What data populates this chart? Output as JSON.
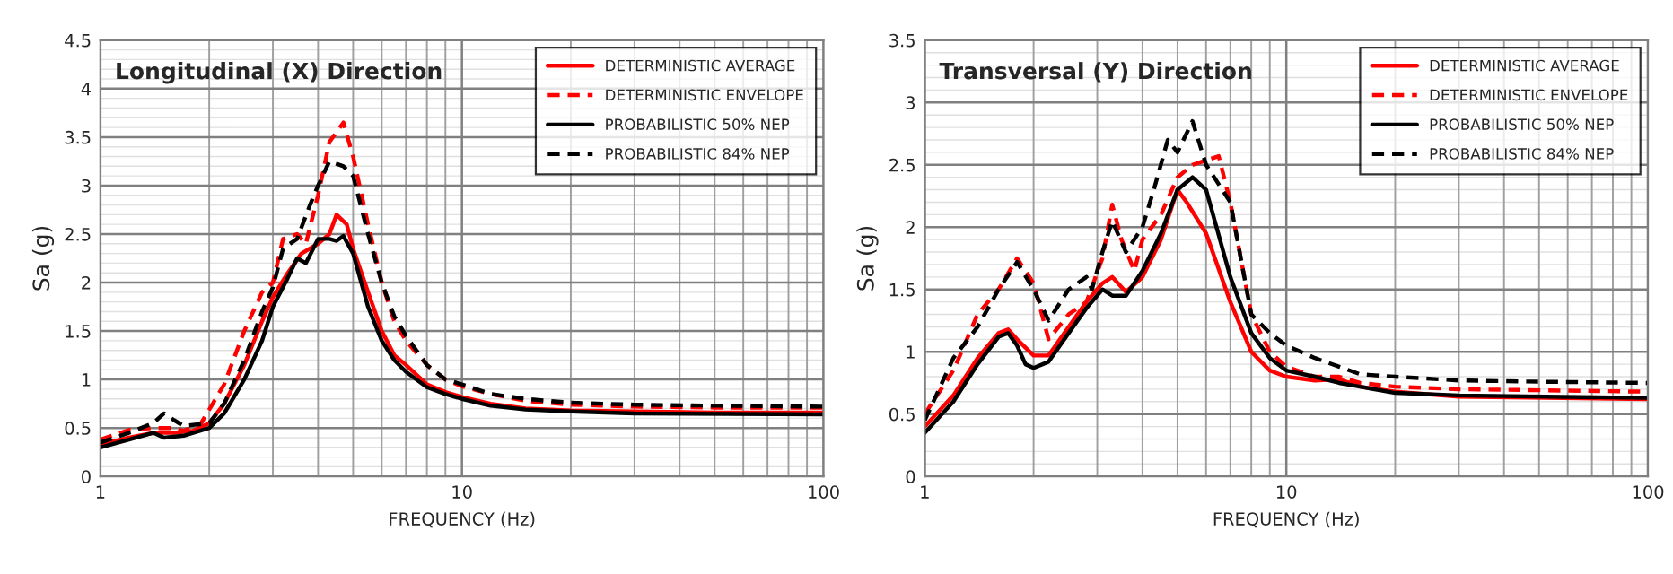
{
  "chart_data": [
    {
      "type": "line",
      "title": "Longitudinal (X) Direction",
      "xlabel": "FREQUENCY (Hz)",
      "ylabel": "Sa (g)",
      "log": "x",
      "grid": true,
      "legend": "top right",
      "xlim": [
        1,
        100
      ],
      "xticks": [
        1,
        10,
        100
      ],
      "ylim": [
        0,
        4.5
      ],
      "yticks": [
        0,
        0.5,
        1,
        1.5,
        2,
        2.5,
        3,
        3.5,
        4,
        4.5
      ],
      "series": [
        {
          "name": "DETERMINISTIC AVERAGE",
          "color": "#ff0000",
          "line_style": "solid",
          "x": [
            1,
            1.2,
            1.4,
            1.6,
            1.8,
            2,
            2.2,
            2.5,
            2.8,
            3,
            3.3,
            3.6,
            4,
            4.3,
            4.5,
            4.8,
            5,
            5.5,
            6,
            6.5,
            7,
            8,
            9,
            10,
            12,
            15,
            20,
            30,
            50,
            100
          ],
          "values": [
            0.33,
            0.4,
            0.45,
            0.45,
            0.47,
            0.55,
            0.75,
            1.15,
            1.6,
            1.85,
            2.1,
            2.3,
            2.4,
            2.5,
            2.7,
            2.6,
            2.35,
            1.9,
            1.5,
            1.25,
            1.15,
            0.95,
            0.87,
            0.82,
            0.75,
            0.7,
            0.68,
            0.67,
            0.66,
            0.66
          ]
        },
        {
          "name": "DETERMINISTIC ENVELOPE",
          "color": "#ff0000",
          "line_style": "dashed",
          "x": [
            1,
            1.2,
            1.4,
            1.6,
            1.7,
            1.9,
            2.2,
            2.5,
            2.8,
            3,
            3.2,
            3.5,
            3.7,
            4,
            4.3,
            4.7,
            5,
            5.5,
            6,
            6.5,
            7,
            8,
            9,
            10,
            12,
            15,
            20,
            30,
            50,
            100
          ],
          "values": [
            0.38,
            0.48,
            0.5,
            0.5,
            0.47,
            0.55,
            0.95,
            1.5,
            1.9,
            2.0,
            2.45,
            2.5,
            2.4,
            2.9,
            3.45,
            3.65,
            3.3,
            2.6,
            2.0,
            1.6,
            1.4,
            1.15,
            1.0,
            0.93,
            0.85,
            0.78,
            0.74,
            0.72,
            0.71,
            0.71
          ]
        },
        {
          "name": "PROBABILISTIC 50% NEP",
          "color": "#000000",
          "line_style": "solid",
          "x": [
            1,
            1.2,
            1.4,
            1.5,
            1.7,
            2,
            2.2,
            2.5,
            2.8,
            3,
            3.3,
            3.5,
            3.7,
            4,
            4.3,
            4.5,
            4.7,
            5,
            5.5,
            6,
            6.5,
            7,
            8,
            9,
            10,
            12,
            15,
            20,
            30,
            100
          ],
          "values": [
            0.3,
            0.38,
            0.45,
            0.4,
            0.42,
            0.5,
            0.65,
            1.0,
            1.4,
            1.75,
            2.05,
            2.25,
            2.2,
            2.45,
            2.45,
            2.43,
            2.48,
            2.3,
            1.75,
            1.4,
            1.2,
            1.08,
            0.92,
            0.85,
            0.8,
            0.73,
            0.69,
            0.67,
            0.65,
            0.64
          ]
        },
        {
          "name": "PROBABILISTIC 84% NEP",
          "color": "#000000",
          "line_style": "dashed",
          "x": [
            1,
            1.2,
            1.4,
            1.5,
            1.6,
            1.7,
            2,
            2.2,
            2.5,
            2.8,
            3,
            3.2,
            3.5,
            3.8,
            4,
            4.3,
            4.7,
            5,
            5.5,
            6,
            6.5,
            7,
            8,
            9,
            10,
            12,
            15,
            20,
            30,
            50,
            100
          ],
          "values": [
            0.35,
            0.45,
            0.55,
            0.65,
            0.58,
            0.52,
            0.55,
            0.75,
            1.2,
            1.7,
            1.95,
            2.35,
            2.45,
            2.8,
            3.0,
            3.25,
            3.2,
            3.1,
            2.5,
            2.0,
            1.65,
            1.45,
            1.15,
            1.0,
            0.95,
            0.85,
            0.8,
            0.76,
            0.74,
            0.73,
            0.72
          ]
        }
      ]
    },
    {
      "type": "line",
      "title": "Transversal (Y) Direction",
      "xlabel": "FREQUENCY (Hz)",
      "ylabel": "Sa (g)",
      "log": "x",
      "grid": true,
      "legend": "top right",
      "xlim": [
        1,
        100
      ],
      "xticks": [
        1,
        10,
        100
      ],
      "ylim": [
        0,
        3.5
      ],
      "yticks": [
        0,
        0.5,
        1,
        1.5,
        2,
        2.5,
        3,
        3.5
      ],
      "series": [
        {
          "name": "DETERMINISTIC AVERAGE",
          "color": "#ff0000",
          "line_style": "solid",
          "x": [
            1,
            1.2,
            1.4,
            1.6,
            1.7,
            1.8,
            2,
            2.2,
            2.5,
            2.8,
            3.1,
            3.3,
            3.6,
            4,
            4.5,
            5,
            5.3,
            6,
            7,
            8,
            9,
            10,
            12,
            14,
            16,
            20,
            30,
            100
          ],
          "values": [
            0.4,
            0.65,
            0.95,
            1.15,
            1.18,
            1.1,
            0.97,
            0.97,
            1.2,
            1.4,
            1.55,
            1.6,
            1.48,
            1.6,
            1.9,
            2.3,
            2.2,
            1.95,
            1.4,
            1.0,
            0.85,
            0.8,
            0.77,
            0.78,
            0.72,
            0.68,
            0.64,
            0.62
          ]
        },
        {
          "name": "DETERMINISTIC ENVELOPE",
          "color": "#ff0000",
          "line_style": "dashed",
          "x": [
            1,
            1.2,
            1.4,
            1.6,
            1.8,
            2,
            2.2,
            2.5,
            2.8,
            3.1,
            3.3,
            3.5,
            3.8,
            4,
            4.5,
            5,
            5.5,
            6.5,
            7,
            8,
            9,
            10,
            12,
            14,
            16,
            20,
            30,
            100
          ],
          "values": [
            0.5,
            0.85,
            1.3,
            1.5,
            1.75,
            1.55,
            1.1,
            1.3,
            1.4,
            1.75,
            2.18,
            1.9,
            1.65,
            1.9,
            2.1,
            2.4,
            2.5,
            2.57,
            2.2,
            1.3,
            1.0,
            0.88,
            0.8,
            0.8,
            0.75,
            0.72,
            0.7,
            0.68
          ]
        },
        {
          "name": "PROBABILISTIC 50% NEP",
          "color": "#000000",
          "line_style": "solid",
          "x": [
            1,
            1.2,
            1.4,
            1.6,
            1.7,
            1.8,
            1.9,
            2,
            2.2,
            2.5,
            2.8,
            3.1,
            3.3,
            3.6,
            4,
            4.5,
            5,
            5.5,
            6,
            7,
            8,
            9,
            10,
            12,
            14,
            16,
            20,
            30,
            100
          ],
          "values": [
            0.35,
            0.6,
            0.9,
            1.12,
            1.15,
            1.05,
            0.9,
            0.87,
            0.92,
            1.15,
            1.35,
            1.5,
            1.45,
            1.45,
            1.65,
            1.95,
            2.3,
            2.4,
            2.3,
            1.6,
            1.15,
            0.95,
            0.85,
            0.8,
            0.75,
            0.72,
            0.67,
            0.65,
            0.63
          ]
        },
        {
          "name": "PROBABILISTIC 84% NEP",
          "color": "#000000",
          "line_style": "dashed",
          "x": [
            1,
            1.2,
            1.4,
            1.6,
            1.8,
            2,
            2.2,
            2.5,
            2.8,
            2.9,
            3.1,
            3.3,
            3.6,
            4,
            4.3,
            4.7,
            5,
            5.5,
            6,
            7,
            8,
            9,
            10,
            12,
            14,
            16,
            20,
            30,
            50,
            100
          ],
          "values": [
            0.45,
            0.95,
            1.2,
            1.5,
            1.72,
            1.5,
            1.25,
            1.5,
            1.6,
            1.5,
            1.8,
            2.05,
            1.8,
            2.0,
            2.3,
            2.7,
            2.6,
            2.85,
            2.5,
            2.2,
            1.3,
            1.15,
            1.05,
            0.95,
            0.88,
            0.82,
            0.8,
            0.77,
            0.76,
            0.75
          ]
        }
      ]
    }
  ]
}
